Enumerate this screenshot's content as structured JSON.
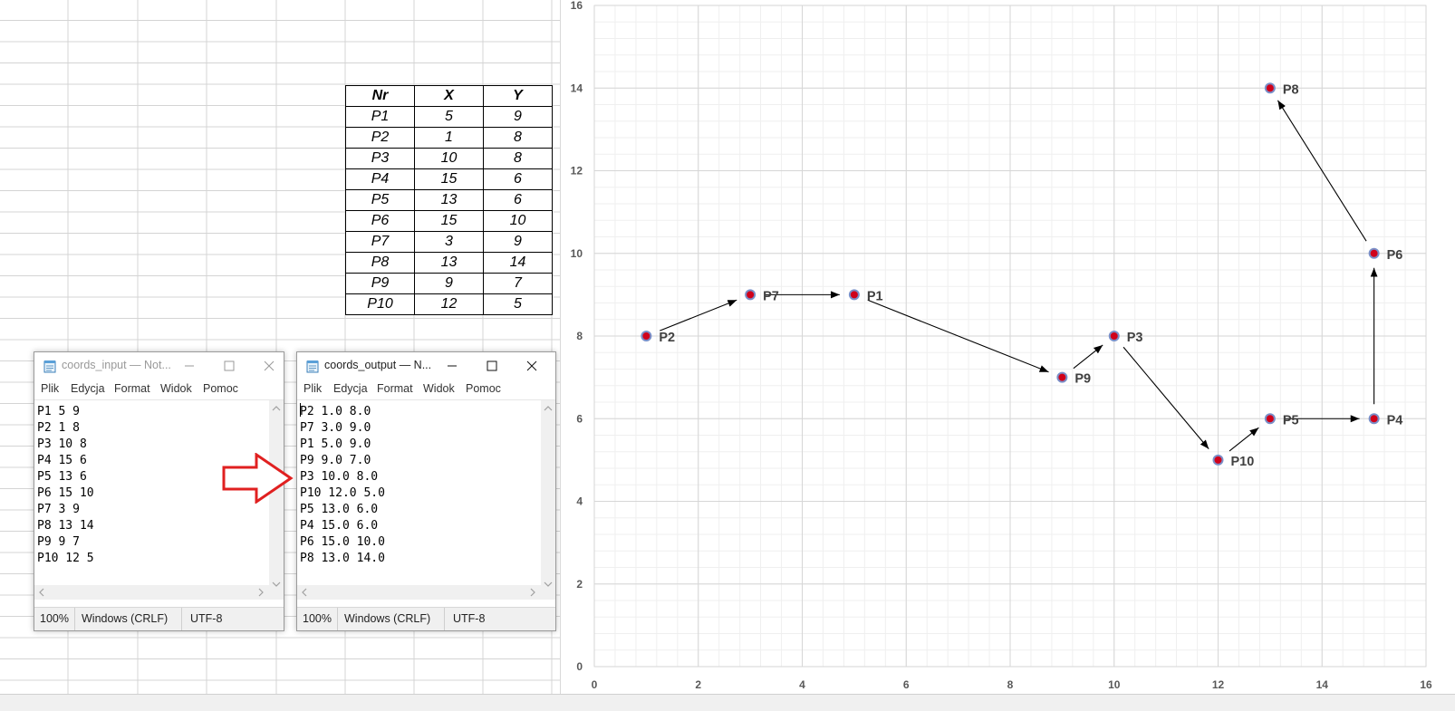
{
  "table": {
    "headers": [
      "Nr",
      "X",
      "Y"
    ],
    "rows": [
      [
        "P1",
        "5",
        "9"
      ],
      [
        "P2",
        "1",
        "8"
      ],
      [
        "P3",
        "10",
        "8"
      ],
      [
        "P4",
        "15",
        "6"
      ],
      [
        "P5",
        "13",
        "6"
      ],
      [
        "P6",
        "15",
        "10"
      ],
      [
        "P7",
        "3",
        "9"
      ],
      [
        "P8",
        "13",
        "14"
      ],
      [
        "P9",
        "9",
        "7"
      ],
      [
        "P10",
        "12",
        "5"
      ]
    ]
  },
  "notepad_input": {
    "title": "coords_input — Not...",
    "menu": [
      "Plik",
      "Edycja",
      "Format",
      "Widok",
      "Pomoc"
    ],
    "lines": [
      "P1 5 9",
      "P2 1 8",
      "P3 10 8",
      "P4 15 6",
      "P5 13 6",
      "P6 15 10",
      "P7 3 9",
      "P8 13 14",
      "P9 9 7",
      "P10 12 5"
    ],
    "status": {
      "zoom": "100%",
      "eol": "Windows (CRLF)",
      "encoding": "UTF-8"
    }
  },
  "notepad_output": {
    "title": "coords_output — N...",
    "menu": [
      "Plik",
      "Edycja",
      "Format",
      "Widok",
      "Pomoc"
    ],
    "lines": [
      "P2 1.0 8.0",
      "P7 3.0 9.0",
      "P1 5.0 9.0",
      "P9 9.0 7.0",
      "P3 10.0 8.0",
      "P10 12.0 5.0",
      "P5 13.0 6.0",
      "P4 15.0 6.0",
      "P6 15.0 10.0",
      "P8 13.0 14.0"
    ],
    "status": {
      "zoom": "100%",
      "eol": "Windows (CRLF)",
      "encoding": "UTF-8"
    }
  },
  "chart_data": {
    "type": "scatter",
    "xlim": [
      0,
      16
    ],
    "ylim": [
      0,
      16
    ],
    "xticks": [
      0,
      2,
      4,
      6,
      8,
      10,
      12,
      14,
      16
    ],
    "yticks": [
      0,
      2,
      4,
      6,
      8,
      10,
      12,
      14,
      16
    ],
    "grid": true,
    "points": [
      {
        "label": "P2",
        "x": 1,
        "y": 8
      },
      {
        "label": "P7",
        "x": 3,
        "y": 9
      },
      {
        "label": "P1",
        "x": 5,
        "y": 9
      },
      {
        "label": "P9",
        "x": 9,
        "y": 7
      },
      {
        "label": "P3",
        "x": 10,
        "y": 8
      },
      {
        "label": "P10",
        "x": 12,
        "y": 5
      },
      {
        "label": "P5",
        "x": 13,
        "y": 6
      },
      {
        "label": "P4",
        "x": 15,
        "y": 6
      },
      {
        "label": "P6",
        "x": 15,
        "y": 10
      },
      {
        "label": "P8",
        "x": 13,
        "y": 14
      }
    ],
    "path_order": [
      "P2",
      "P7",
      "P1",
      "P9",
      "P3",
      "P10",
      "P5",
      "P4",
      "P6",
      "P8"
    ],
    "marker_color": "#d0021b",
    "marker_edge_color": "#7a8fc8"
  },
  "colors": {
    "arrow": "#e02020",
    "gridline": "#d4d4d4"
  }
}
